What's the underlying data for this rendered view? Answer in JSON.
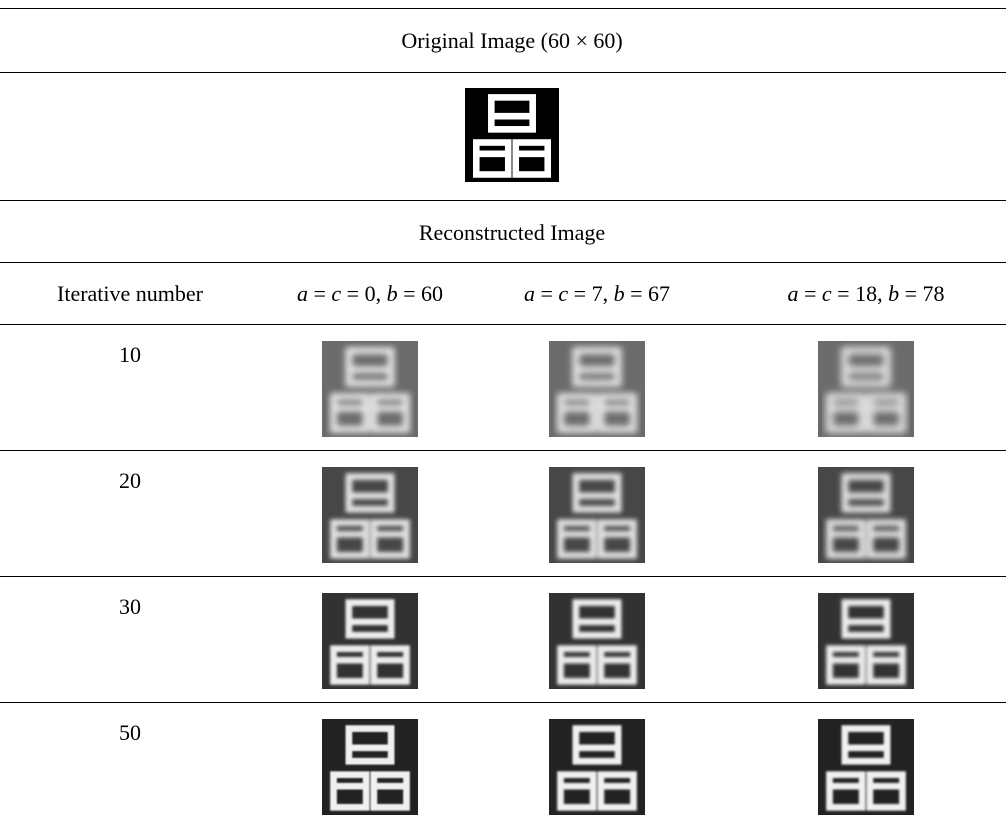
{
  "header": {
    "title": "Original Image (60 × 60)"
  },
  "section": {
    "title": "Reconstructed Image"
  },
  "table": {
    "columns": [
      "Iterative number",
      "a = c = 0, b = 60",
      "a = c = 7, b = 67",
      "a = c = 18, b = 78"
    ],
    "rows": [
      [
        "10"
      ],
      [
        "20"
      ],
      [
        "30"
      ],
      [
        "50"
      ]
    ]
  }
}
